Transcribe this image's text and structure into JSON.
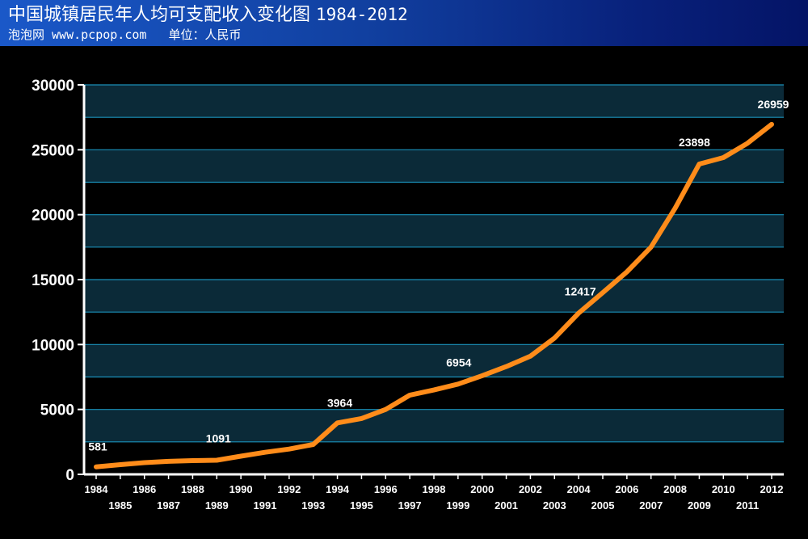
{
  "header": {
    "title": "中国城镇居民年人均可支配收入变化图",
    "title_range": "1984-2012",
    "source": "泡泡网 www.pcpop.com",
    "unit": "单位：人民币"
  },
  "colors": {
    "header_gradient_start": "#1a58c8",
    "header_gradient_end": "#041466",
    "band_dark": "#000000",
    "band_light": "#0b2a38",
    "gridline": "#1a8fb8",
    "line": "#ff8c1a",
    "axis": "#ffffff"
  },
  "chart_data": {
    "type": "line",
    "title": "中国城镇居民年人均可支配收入变化图 1984-2012",
    "xlabel": "",
    "ylabel": "",
    "ylim": [
      0,
      30000
    ],
    "y_ticks": [
      0,
      5000,
      10000,
      15000,
      20000,
      25000,
      30000
    ],
    "grid": true,
    "x": [
      1984,
      1985,
      1986,
      1987,
      1988,
      1989,
      1990,
      1991,
      1992,
      1993,
      1994,
      1995,
      1996,
      1997,
      1998,
      1999,
      2000,
      2001,
      2002,
      2003,
      2004,
      2005,
      2006,
      2007,
      2008,
      2009,
      2010,
      2011,
      2012
    ],
    "series": [
      {
        "values": [
          581,
          750,
          900,
          1000,
          1060,
          1091,
          1400,
          1700,
          1950,
          2300,
          3964,
          4300,
          5000,
          6100,
          6500,
          6954,
          7600,
          8300,
          9100,
          10500,
          12417,
          14000,
          15600,
          17500,
          20500,
          23898,
          24400,
          25500,
          26959
        ]
      }
    ],
    "data_labels": [
      {
        "year": 1984,
        "value": "581"
      },
      {
        "year": 1989,
        "value": "1091"
      },
      {
        "year": 1994,
        "value": "3964"
      },
      {
        "year": 1999,
        "value": "6954"
      },
      {
        "year": 2004,
        "value": "12417"
      },
      {
        "year": 2009,
        "value": "23898"
      },
      {
        "year": 2012,
        "value": "26959"
      }
    ]
  }
}
